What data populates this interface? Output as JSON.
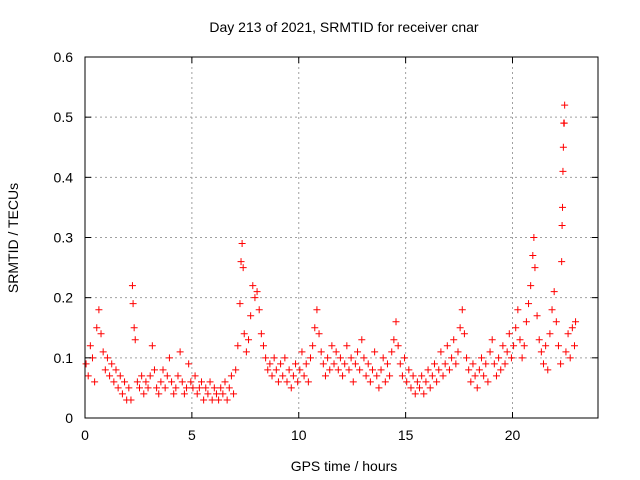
{
  "chart_data": {
    "type": "scatter",
    "title": "Day 213 of 2021, SRMTID for receiver cnar",
    "xlabel": "GPS time / hours",
    "ylabel": "SRMTID / TECUs",
    "xlim": [
      0,
      24
    ],
    "ylim": [
      0,
      0.6
    ],
    "xticks": [
      0,
      5,
      10,
      15,
      20
    ],
    "yticks": [
      0,
      0.1,
      0.2,
      0.3,
      0.4,
      0.5,
      0.6
    ],
    "xtick_labels": [
      "0",
      "5",
      "10",
      "15",
      "20"
    ],
    "ytick_labels": [
      "0",
      "0.1",
      "0.2",
      "0.3",
      "0.4",
      "0.5",
      "0.6"
    ],
    "grid": true,
    "marker": "+",
    "color": "#ff0000",
    "series": [
      {
        "name": "SRMTID",
        "points": [
          [
            0.05,
            0.09
          ],
          [
            0.15,
            0.07
          ],
          [
            0.25,
            0.12
          ],
          [
            0.35,
            0.1
          ],
          [
            0.45,
            0.06
          ],
          [
            0.55,
            0.15
          ],
          [
            0.65,
            0.18
          ],
          [
            0.75,
            0.14
          ],
          [
            0.85,
            0.11
          ],
          [
            0.95,
            0.08
          ],
          [
            1.05,
            0.1
          ],
          [
            1.15,
            0.07
          ],
          [
            1.25,
            0.09
          ],
          [
            1.35,
            0.06
          ],
          [
            1.45,
            0.08
          ],
          [
            1.55,
            0.05
          ],
          [
            1.65,
            0.07
          ],
          [
            1.75,
            0.04
          ],
          [
            1.85,
            0.06
          ],
          [
            1.95,
            0.03
          ],
          [
            2.05,
            0.05
          ],
          [
            2.15,
            0.03
          ],
          [
            2.22,
            0.22
          ],
          [
            2.25,
            0.19
          ],
          [
            2.3,
            0.15
          ],
          [
            2.35,
            0.13
          ],
          [
            2.45,
            0.06
          ],
          [
            2.55,
            0.05
          ],
          [
            2.65,
            0.07
          ],
          [
            2.75,
            0.04
          ],
          [
            2.85,
            0.06
          ],
          [
            2.95,
            0.05
          ],
          [
            3.05,
            0.07
          ],
          [
            3.15,
            0.12
          ],
          [
            3.25,
            0.08
          ],
          [
            3.35,
            0.05
          ],
          [
            3.45,
            0.04
          ],
          [
            3.55,
            0.06
          ],
          [
            3.65,
            0.08
          ],
          [
            3.75,
            0.05
          ],
          [
            3.85,
            0.07
          ],
          [
            3.95,
            0.1
          ],
          [
            4.05,
            0.06
          ],
          [
            4.15,
            0.04
          ],
          [
            4.25,
            0.05
          ],
          [
            4.35,
            0.07
          ],
          [
            4.45,
            0.11
          ],
          [
            4.55,
            0.06
          ],
          [
            4.65,
            0.04
          ],
          [
            4.75,
            0.05
          ],
          [
            4.85,
            0.09
          ],
          [
            4.95,
            0.06
          ],
          [
            5.05,
            0.05
          ],
          [
            5.15,
            0.07
          ],
          [
            5.25,
            0.04
          ],
          [
            5.35,
            0.05
          ],
          [
            5.45,
            0.06
          ],
          [
            5.55,
            0.03
          ],
          [
            5.65,
            0.05
          ],
          [
            5.75,
            0.04
          ],
          [
            5.85,
            0.06
          ],
          [
            5.95,
            0.03
          ],
          [
            6.05,
            0.05
          ],
          [
            6.15,
            0.04
          ],
          [
            6.25,
            0.03
          ],
          [
            6.35,
            0.05
          ],
          [
            6.45,
            0.04
          ],
          [
            6.55,
            0.06
          ],
          [
            6.65,
            0.03
          ],
          [
            6.75,
            0.05
          ],
          [
            6.85,
            0.07
          ],
          [
            6.95,
            0.04
          ],
          [
            7.05,
            0.08
          ],
          [
            7.15,
            0.12
          ],
          [
            7.25,
            0.19
          ],
          [
            7.3,
            0.26
          ],
          [
            7.35,
            0.29
          ],
          [
            7.4,
            0.25
          ],
          [
            7.45,
            0.14
          ],
          [
            7.55,
            0.11
          ],
          [
            7.65,
            0.13
          ],
          [
            7.75,
            0.17
          ],
          [
            7.85,
            0.22
          ],
          [
            7.95,
            0.2
          ],
          [
            8.05,
            0.21
          ],
          [
            8.15,
            0.18
          ],
          [
            8.25,
            0.14
          ],
          [
            8.35,
            0.12
          ],
          [
            8.45,
            0.1
          ],
          [
            8.55,
            0.08
          ],
          [
            8.65,
            0.09
          ],
          [
            8.75,
            0.07
          ],
          [
            8.85,
            0.1
          ],
          [
            8.95,
            0.08
          ],
          [
            9.05,
            0.06
          ],
          [
            9.15,
            0.09
          ],
          [
            9.25,
            0.07
          ],
          [
            9.35,
            0.1
          ],
          [
            9.45,
            0.06
          ],
          [
            9.55,
            0.08
          ],
          [
            9.65,
            0.05
          ],
          [
            9.75,
            0.07
          ],
          [
            9.85,
            0.09
          ],
          [
            9.95,
            0.06
          ],
          [
            10.05,
            0.08
          ],
          [
            10.15,
            0.11
          ],
          [
            10.25,
            0.07
          ],
          [
            10.35,
            0.09
          ],
          [
            10.45,
            0.06
          ],
          [
            10.55,
            0.1
          ],
          [
            10.65,
            0.12
          ],
          [
            10.75,
            0.15
          ],
          [
            10.85,
            0.18
          ],
          [
            10.95,
            0.14
          ],
          [
            11.05,
            0.11
          ],
          [
            11.15,
            0.09
          ],
          [
            11.25,
            0.07
          ],
          [
            11.35,
            0.1
          ],
          [
            11.45,
            0.08
          ],
          [
            11.55,
            0.12
          ],
          [
            11.65,
            0.09
          ],
          [
            11.75,
            0.11
          ],
          [
            11.85,
            0.08
          ],
          [
            11.95,
            0.1
          ],
          [
            12.05,
            0.07
          ],
          [
            12.15,
            0.09
          ],
          [
            12.25,
            0.12
          ],
          [
            12.35,
            0.08
          ],
          [
            12.45,
            0.1
          ],
          [
            12.55,
            0.06
          ],
          [
            12.65,
            0.09
          ],
          [
            12.75,
            0.11
          ],
          [
            12.85,
            0.08
          ],
          [
            12.95,
            0.13
          ],
          [
            13.05,
            0.1
          ],
          [
            13.15,
            0.07
          ],
          [
            13.25,
            0.09
          ],
          [
            13.35,
            0.06
          ],
          [
            13.45,
            0.08
          ],
          [
            13.55,
            0.11
          ],
          [
            13.65,
            0.07
          ],
          [
            13.75,
            0.05
          ],
          [
            13.85,
            0.08
          ],
          [
            13.95,
            0.1
          ],
          [
            14.05,
            0.06
          ],
          [
            14.15,
            0.09
          ],
          [
            14.25,
            0.07
          ],
          [
            14.35,
            0.11
          ],
          [
            14.45,
            0.13
          ],
          [
            14.55,
            0.16
          ],
          [
            14.65,
            0.12
          ],
          [
            14.75,
            0.09
          ],
          [
            14.85,
            0.07
          ],
          [
            14.95,
            0.1
          ],
          [
            15.05,
            0.06
          ],
          [
            15.15,
            0.08
          ],
          [
            15.25,
            0.05
          ],
          [
            15.35,
            0.07
          ],
          [
            15.45,
            0.04
          ],
          [
            15.55,
            0.06
          ],
          [
            15.65,
            0.05
          ],
          [
            15.75,
            0.07
          ],
          [
            15.85,
            0.04
          ],
          [
            15.95,
            0.06
          ],
          [
            16.05,
            0.08
          ],
          [
            16.15,
            0.05
          ],
          [
            16.25,
            0.07
          ],
          [
            16.35,
            0.09
          ],
          [
            16.45,
            0.06
          ],
          [
            16.55,
            0.08
          ],
          [
            16.65,
            0.11
          ],
          [
            16.75,
            0.07
          ],
          [
            16.85,
            0.09
          ],
          [
            16.95,
            0.12
          ],
          [
            17.05,
            0.08
          ],
          [
            17.15,
            0.1
          ],
          [
            17.25,
            0.13
          ],
          [
            17.35,
            0.09
          ],
          [
            17.45,
            0.11
          ],
          [
            17.55,
            0.15
          ],
          [
            17.65,
            0.18
          ],
          [
            17.75,
            0.14
          ],
          [
            17.85,
            0.1
          ],
          [
            17.95,
            0.08
          ],
          [
            18.05,
            0.06
          ],
          [
            18.15,
            0.09
          ],
          [
            18.25,
            0.07
          ],
          [
            18.35,
            0.05
          ],
          [
            18.45,
            0.08
          ],
          [
            18.55,
            0.1
          ],
          [
            18.65,
            0.07
          ],
          [
            18.75,
            0.09
          ],
          [
            18.85,
            0.06
          ],
          [
            18.95,
            0.11
          ],
          [
            19.05,
            0.13
          ],
          [
            19.15,
            0.09
          ],
          [
            19.25,
            0.07
          ],
          [
            19.35,
            0.1
          ],
          [
            19.45,
            0.08
          ],
          [
            19.55,
            0.12
          ],
          [
            19.65,
            0.09
          ],
          [
            19.75,
            0.11
          ],
          [
            19.85,
            0.14
          ],
          [
            19.95,
            0.1
          ],
          [
            20.05,
            0.12
          ],
          [
            20.15,
            0.15
          ],
          [
            20.25,
            0.18
          ],
          [
            20.35,
            0.13
          ],
          [
            20.45,
            0.1
          ],
          [
            20.55,
            0.12
          ],
          [
            20.65,
            0.16
          ],
          [
            20.75,
            0.19
          ],
          [
            20.85,
            0.22
          ],
          [
            20.95,
            0.27
          ],
          [
            21.0,
            0.3
          ],
          [
            21.05,
            0.25
          ],
          [
            21.15,
            0.17
          ],
          [
            21.25,
            0.13
          ],
          [
            21.35,
            0.11
          ],
          [
            21.45,
            0.09
          ],
          [
            21.55,
            0.12
          ],
          [
            21.65,
            0.08
          ],
          [
            21.75,
            0.14
          ],
          [
            21.85,
            0.18
          ],
          [
            21.95,
            0.21
          ],
          [
            22.05,
            0.16
          ],
          [
            22.15,
            0.12
          ],
          [
            22.25,
            0.09
          ],
          [
            22.3,
            0.26
          ],
          [
            22.32,
            0.32
          ],
          [
            22.34,
            0.35
          ],
          [
            22.36,
            0.41
          ],
          [
            22.38,
            0.45
          ],
          [
            22.4,
            0.49
          ],
          [
            22.42,
            0.49
          ],
          [
            22.44,
            0.52
          ],
          [
            22.5,
            0.11
          ],
          [
            22.6,
            0.14
          ],
          [
            22.7,
            0.1
          ],
          [
            22.8,
            0.15
          ],
          [
            22.9,
            0.12
          ],
          [
            22.95,
            0.16
          ]
        ]
      }
    ]
  }
}
